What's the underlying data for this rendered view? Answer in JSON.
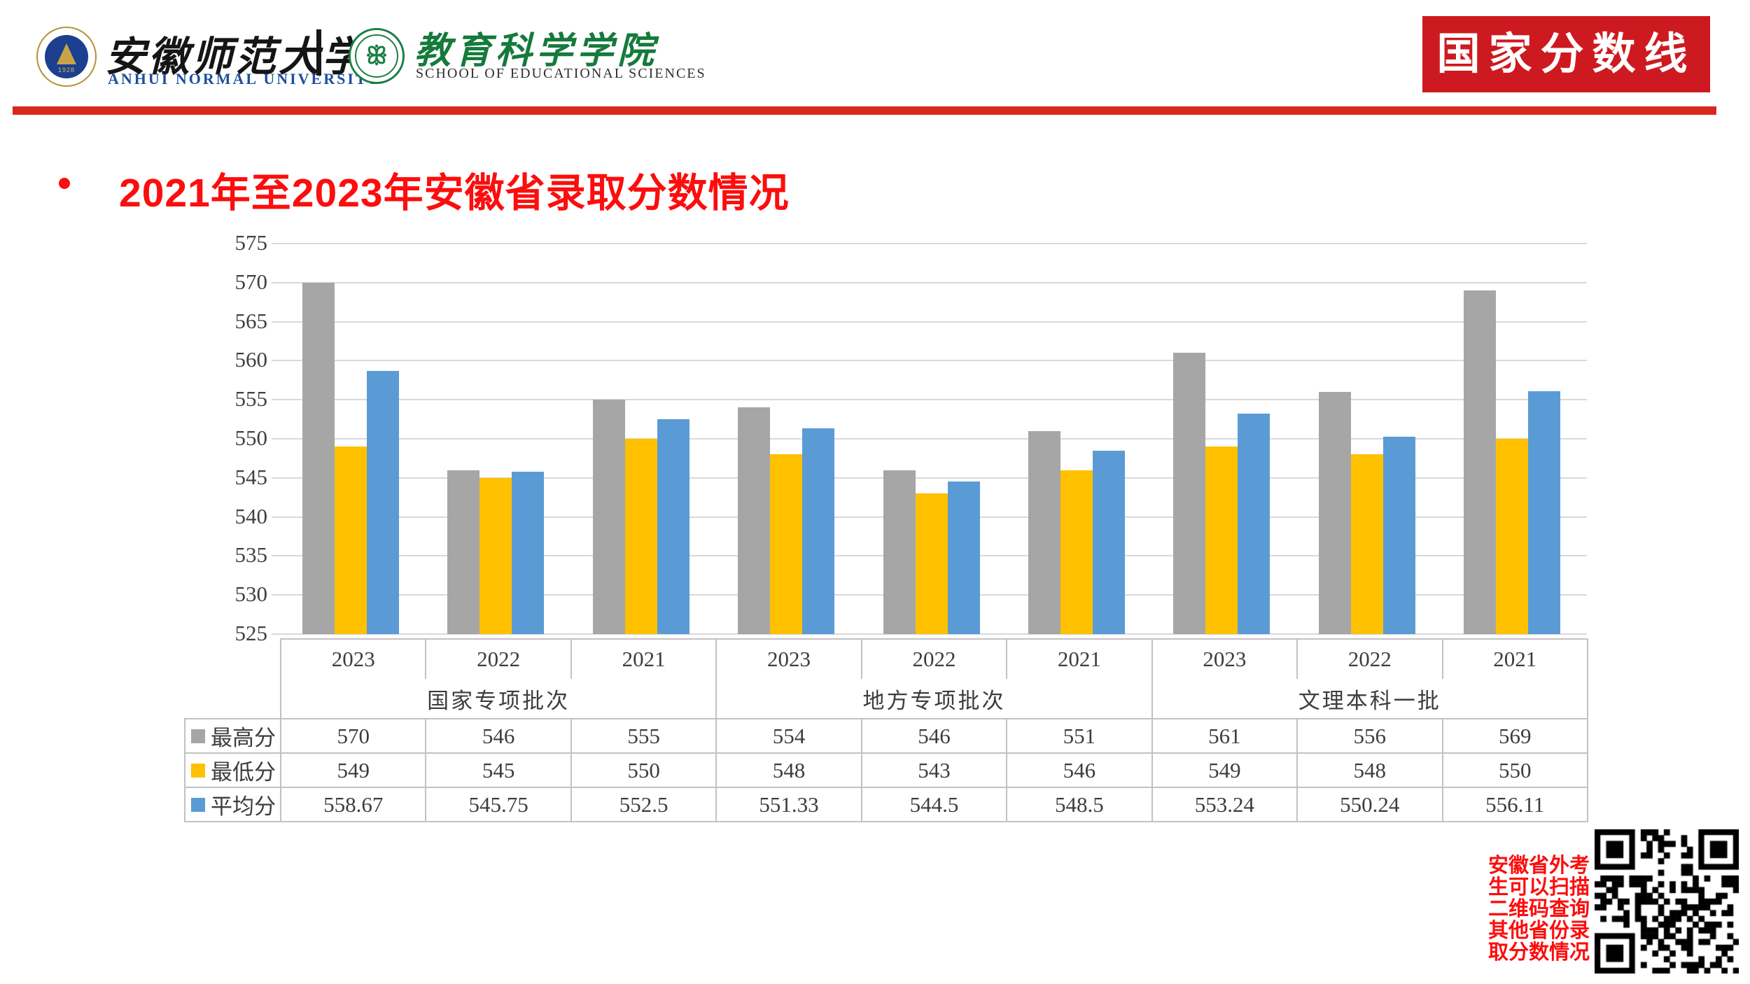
{
  "header": {
    "university_cn": "安徽师范大学",
    "university_en": "ANHUI NORMAL UNIVERSITY",
    "university_seal_year": "1928",
    "school_cn": "教育科学学院",
    "school_en": "SCHOOL OF EDUCATIONAL SCIENCES",
    "banner": "国家分数线"
  },
  "title": {
    "text": "2021年至2023年安徽省录取分数情况"
  },
  "qr_note": "安徽省外考\n生可以扫描\n二维码查询\n其他省份录\n取分数情况",
  "colors": {
    "accent_red": "#fd0d0d",
    "banner_bg": "#cd1a20",
    "rule_red": "#d8291f",
    "university_blue": "#1d4f9e",
    "school_green": "#157a3b",
    "series_gray": "#a6a6a6",
    "series_gold": "#ffc000",
    "series_blue": "#5b9bd5"
  },
  "chart_data": {
    "type": "bar",
    "title": "2021年至2023年安徽省录取分数情况",
    "categories": [
      "2023",
      "2022",
      "2021",
      "2023",
      "2022",
      "2021",
      "2023",
      "2022",
      "2021"
    ],
    "group_labels": [
      {
        "label": "国家专项批次",
        "span": 3
      },
      {
        "label": "地方专项批次",
        "span": 3
      },
      {
        "label": "文理本科一批",
        "span": 3
      }
    ],
    "series": [
      {
        "key": "max",
        "name": "最高分",
        "color": "#a6a6a6",
        "values": [
          570,
          546,
          555,
          554,
          546,
          551,
          561,
          556,
          569
        ]
      },
      {
        "key": "min",
        "name": "最低分",
        "color": "#ffc000",
        "values": [
          549,
          545,
          550,
          548,
          543,
          546,
          549,
          548,
          550
        ]
      },
      {
        "key": "avg",
        "name": "平均分",
        "color": "#5b9bd5",
        "values": [
          558.67,
          545.75,
          552.5,
          551.33,
          544.5,
          548.5,
          553.24,
          550.24,
          556.11
        ]
      }
    ],
    "ylim": [
      525,
      575
    ],
    "ytick_step": 5,
    "grid": true,
    "legend_position": "table-left"
  }
}
